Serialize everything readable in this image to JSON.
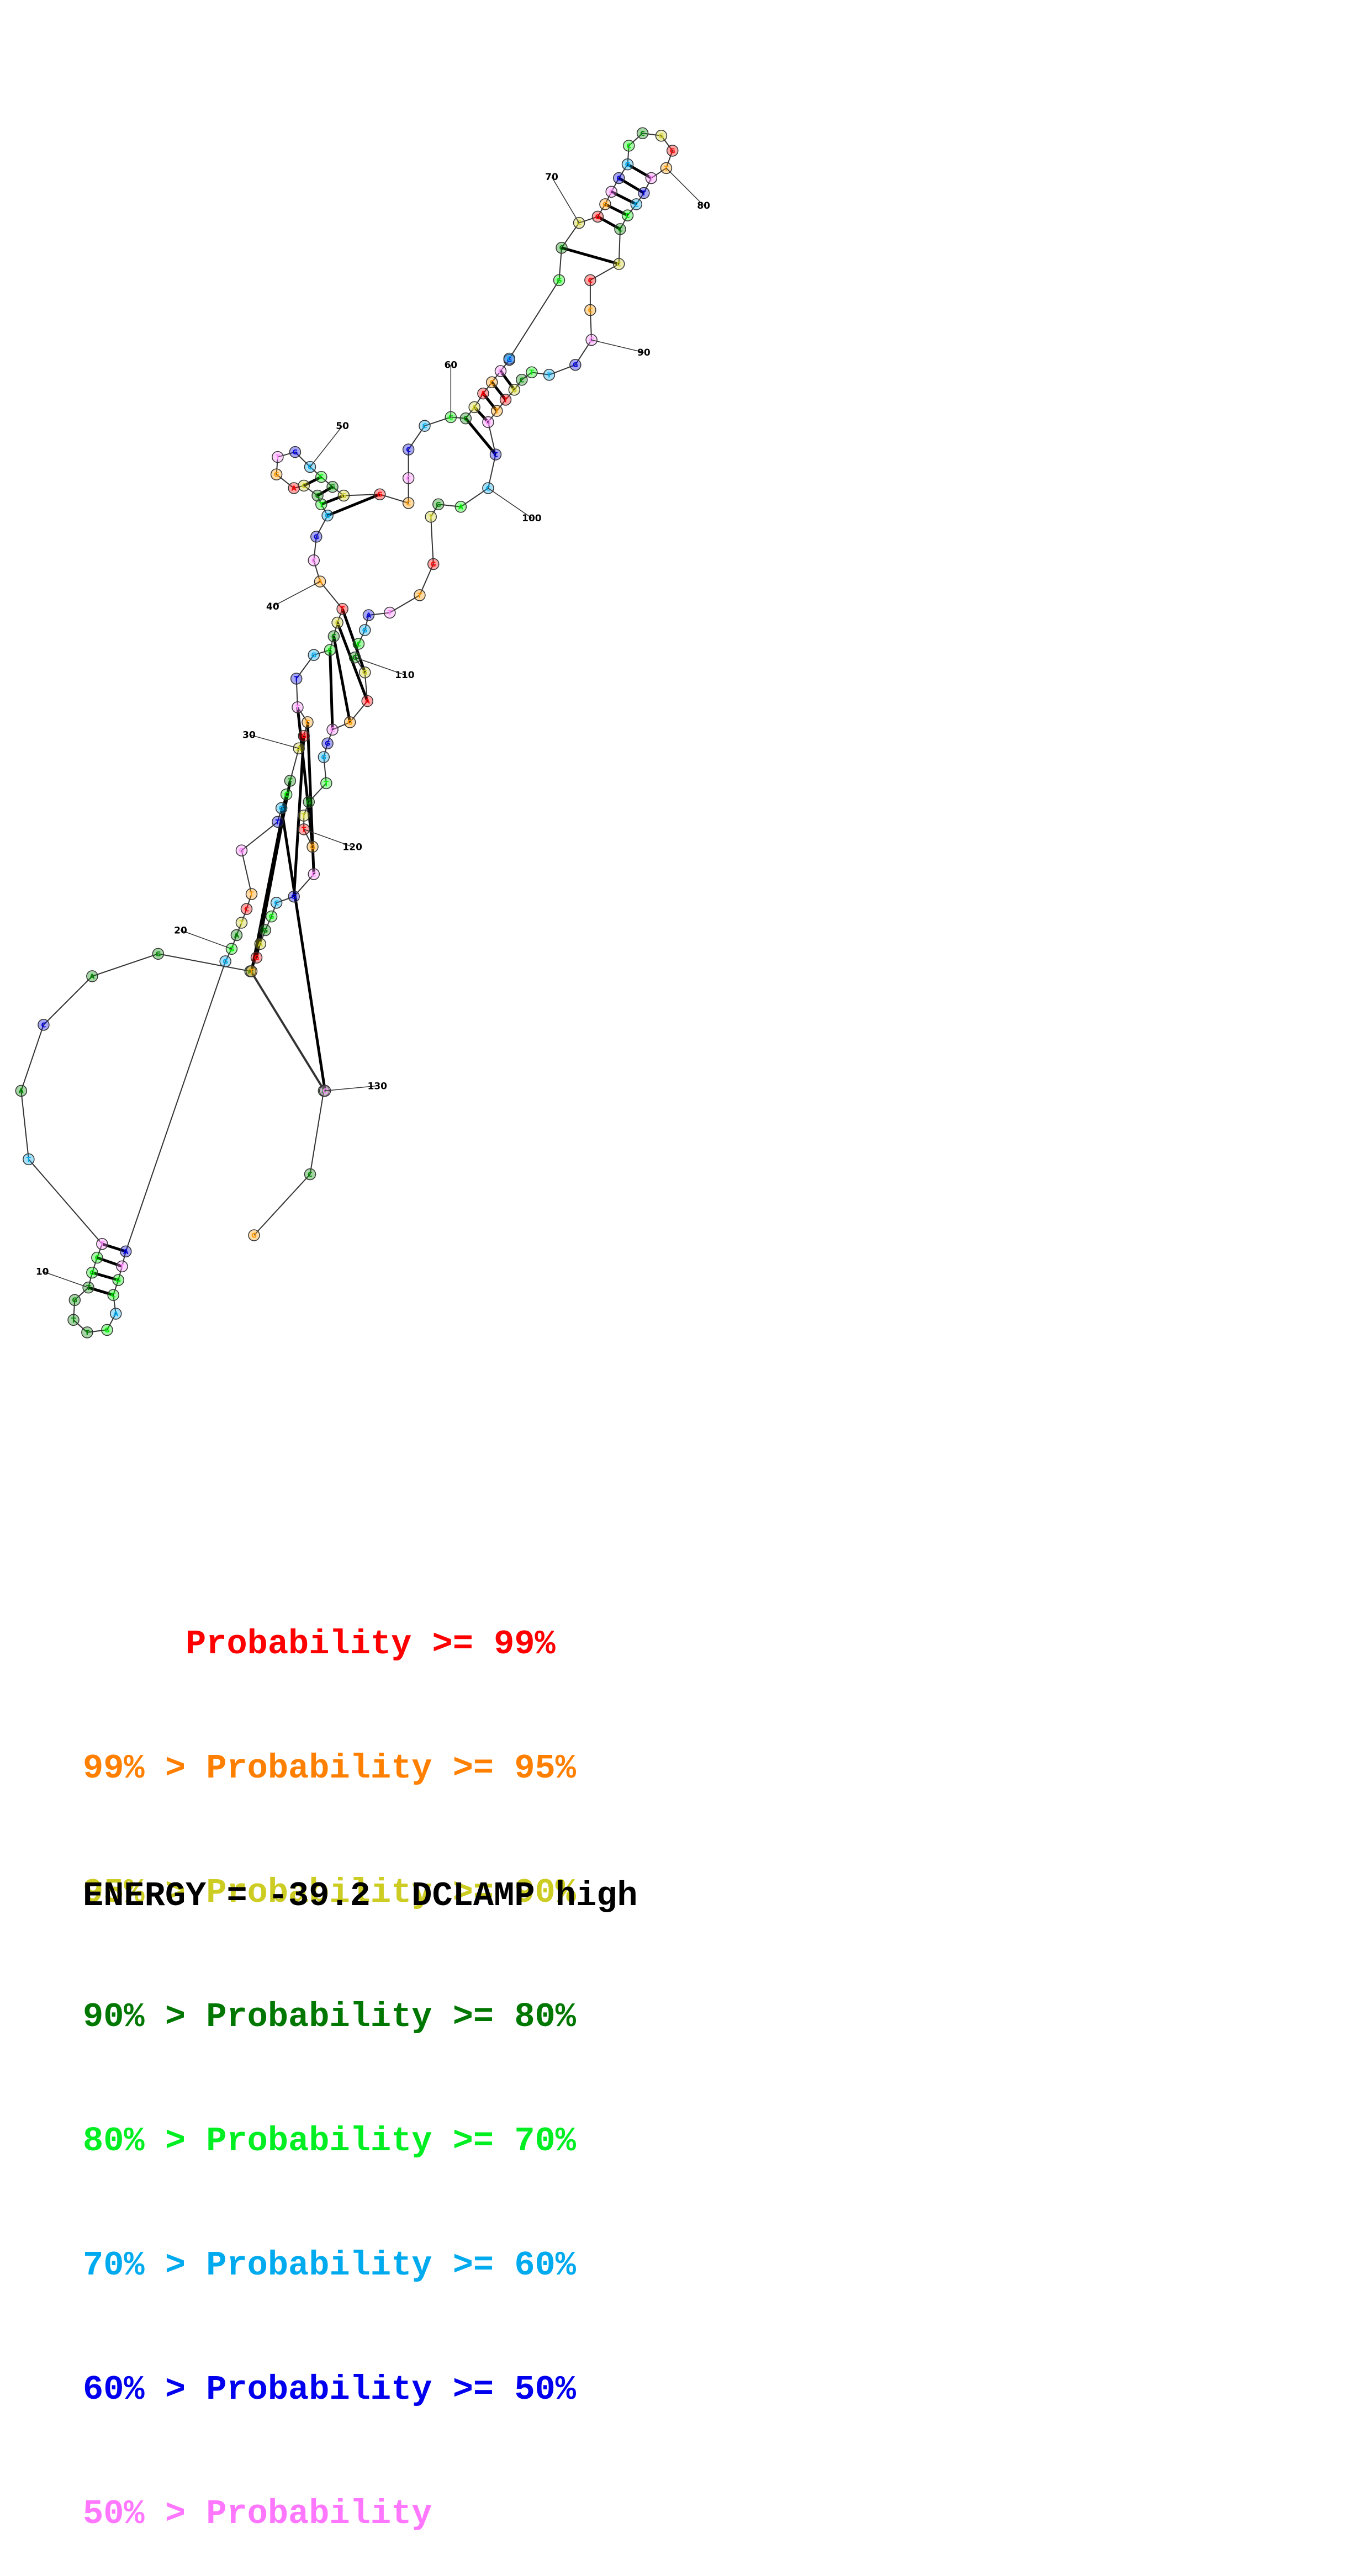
{
  "diagram": {
    "nucleotides": [
      {
        "letter": "G",
        "color": "#ff9900"
      },
      {
        "letter": "C",
        "color": "#008800"
      },
      {
        "letter": "A",
        "color": "#008800"
      },
      {
        "letter": "A",
        "color": "#008800"
      },
      {
        "letter": "G",
        "color": "#008800"
      },
      {
        "letter": "A",
        "color": "#008800"
      },
      {
        "letter": "C",
        "color": "#0000dd"
      },
      {
        "letter": "A",
        "color": "#008800"
      },
      {
        "letter": "T",
        "color": "#00aaee"
      },
      {
        "letter": "T",
        "color": "#ff88ff"
      },
      {
        "letter": "C",
        "color": "#00ee00"
      },
      {
        "letter": "G",
        "color": "#00ee00"
      },
      {
        "letter": "T",
        "color": "#008800"
      },
      {
        "letter": "G",
        "color": "#008800"
      },
      {
        "letter": "T",
        "color": "#008800"
      },
      {
        "letter": "T",
        "color": "#008800"
      },
      {
        "letter": "G",
        "color": "#00ee00"
      },
      {
        "letter": "A",
        "color": "#00aaee"
      },
      {
        "letter": "C",
        "color": "#00ee00"
      },
      {
        "letter": "G",
        "color": "#00ee00"
      },
      {
        "letter": "T",
        "color": "#ff88ff"
      }
    ],
    "position_labels": [
      "10",
      "20",
      "30",
      "40",
      "50",
      "60",
      "70",
      "80",
      "90",
      "100",
      "110",
      "120",
      "130"
    ]
  },
  "legend": {
    "rows": [
      {
        "text": "     Probability >= 99%",
        "color": "#ff0000"
      },
      {
        "text": "99% > Probability >= 95%",
        "color": "#ff7f00"
      },
      {
        "text": "95% > Probability >= 90%",
        "color": "#cccc22"
      },
      {
        "text": "90% > Probability >= 80%",
        "color": "#007700"
      },
      {
        "text": "80% > Probability >= 70%",
        "color": "#00ee22"
      },
      {
        "text": "70% > Probability >= 60%",
        "color": "#00aaee"
      },
      {
        "text": "60% > Probability >= 50%",
        "color": "#0000ee"
      },
      {
        "text": "50% > Probability",
        "color": "#ff77ff"
      }
    ],
    "energy": "ENERGY = -39.2  DCLAMP high"
  }
}
